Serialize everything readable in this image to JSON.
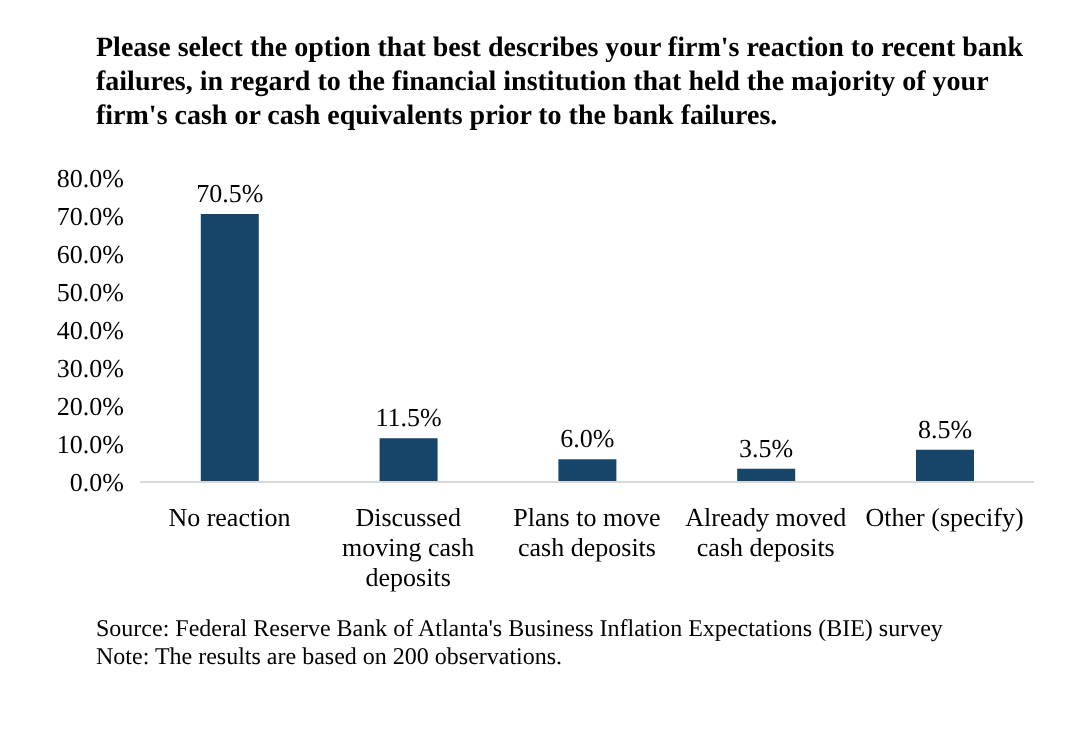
{
  "chart_data": {
    "type": "bar",
    "title": "Please select the option that best describes your firm's reaction to recent bank failures, in regard to the financial institution that held the majority of your firm's cash or cash equivalents prior to the bank failures.",
    "categories": [
      "No reaction",
      "Discussed moving cash deposits",
      "Plans to move cash deposits",
      "Already moved cash deposits",
      "Other (specify)"
    ],
    "values": [
      70.5,
      11.5,
      6.0,
      3.5,
      8.5
    ],
    "value_labels": [
      "70.5%",
      "11.5%",
      "6.0%",
      "3.5%",
      "8.5%"
    ],
    "color": "#17456a",
    "ylim": [
      0,
      80
    ],
    "yticks": [
      {
        "value": 0,
        "label": "0.0%"
      },
      {
        "value": 10,
        "label": "10.0%"
      },
      {
        "value": 20,
        "label": "20.0%"
      },
      {
        "value": 30,
        "label": "30.0%"
      },
      {
        "value": 40,
        "label": "40.0%"
      },
      {
        "value": 50,
        "label": "50.0%"
      },
      {
        "value": 60,
        "label": "60.0%"
      },
      {
        "value": 70,
        "label": "70.0%"
      },
      {
        "value": 80,
        "label": "80.0%"
      }
    ],
    "annotations": [
      "Source: Federal Reserve Bank of Atlanta's Business Inflation Expectations (BIE) survey",
      "Note: The results are based on 200 observations."
    ]
  }
}
